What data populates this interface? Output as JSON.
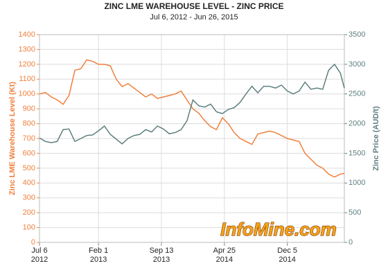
{
  "chart_data": {
    "type": "line",
    "title": "ZINC LME WAREHOUSE LEVEL - ZINC PRICE",
    "subtitle": "Jul 6, 2012 - Jun 26, 2015",
    "watermark": "InfoMine.com",
    "y_label": "Zinc LME Warehouse Level (Kt)",
    "y2_label": "Zinc Price (AUD/t)",
    "grid": true,
    "x": [
      "2012-07-06",
      "2012-07-27",
      "2012-08-17",
      "2012-09-07",
      "2012-09-28",
      "2012-10-19",
      "2012-11-09",
      "2012-11-30",
      "2012-12-21",
      "2013-01-11",
      "2013-02-01",
      "2013-02-22",
      "2013-03-15",
      "2013-04-05",
      "2013-04-26",
      "2013-05-17",
      "2013-06-07",
      "2013-06-28",
      "2013-07-19",
      "2013-08-09",
      "2013-08-30",
      "2013-09-20",
      "2013-10-11",
      "2013-11-01",
      "2013-11-22",
      "2013-12-13",
      "2014-01-03",
      "2014-01-24",
      "2014-02-14",
      "2014-03-07",
      "2014-03-28",
      "2014-04-18",
      "2014-05-09",
      "2014-05-30",
      "2014-06-20",
      "2014-07-11",
      "2014-08-01",
      "2014-08-22",
      "2014-09-12",
      "2014-10-03",
      "2014-10-24",
      "2014-11-14",
      "2014-12-05",
      "2014-12-26",
      "2015-01-16",
      "2015-02-06",
      "2015-02-27",
      "2015-03-20",
      "2015-04-10",
      "2015-05-01",
      "2015-05-22",
      "2015-06-12",
      "2015-06-26"
    ],
    "xlim": [
      "2012-07-06",
      "2015-06-26"
    ],
    "xticks": [
      {
        "value": "2012-07-06",
        "label": [
          "Jul 6",
          "2012"
        ]
      },
      {
        "value": "2013-02-01",
        "label": [
          "Feb 1",
          "2013"
        ]
      },
      {
        "value": "2013-09-13",
        "label": [
          "Sep 13",
          "2013"
        ]
      },
      {
        "value": "2014-04-25",
        "label": [
          "Apr 25",
          "2014"
        ]
      },
      {
        "value": "2014-12-05",
        "label": [
          "Dec 5",
          "2014"
        ]
      }
    ],
    "ylim": [
      0,
      1400
    ],
    "yticks": [
      0,
      100,
      200,
      300,
      400,
      500,
      600,
      700,
      800,
      900,
      1000,
      1100,
      1200,
      1300,
      1400
    ],
    "y2lim": [
      0,
      3500
    ],
    "y2ticks": [
      0,
      500,
      1000,
      1500,
      2000,
      2500,
      3000,
      3500
    ],
    "series": [
      {
        "name": "Zinc LME Warehouse Level",
        "color": "#f07f3c",
        "values": [
          1000,
          1010,
          980,
          960,
          930,
          990,
          1160,
          1170,
          1230,
          1220,
          1200,
          1200,
          1190,
          1100,
          1050,
          1070,
          1040,
          1010,
          980,
          1000,
          970,
          980,
          990,
          1000,
          1020,
          960,
          900,
          870,
          820,
          780,
          760,
          840,
          800,
          740,
          700,
          680,
          660,
          730,
          740,
          750,
          740,
          720,
          700,
          690,
          680,
          600,
          560,
          520,
          500,
          460,
          440,
          460,
          465
        ]
      },
      {
        "name": "Zinc Price",
        "color": "#5f7f7f",
        "axis": "y2",
        "values": [
          1760,
          1700,
          1680,
          1700,
          1900,
          1910,
          1700,
          1750,
          1800,
          1810,
          1880,
          1960,
          1820,
          1740,
          1660,
          1750,
          1800,
          1820,
          1900,
          1860,
          1960,
          1910,
          1830,
          1850,
          1900,
          2050,
          2400,
          2300,
          2280,
          2330,
          2200,
          2170,
          2240,
          2270,
          2360,
          2500,
          2630,
          2520,
          2630,
          2630,
          2600,
          2650,
          2550,
          2500,
          2550,
          2700,
          2580,
          2600,
          2580,
          2900,
          3000,
          2850,
          2600
        ]
      }
    ]
  }
}
